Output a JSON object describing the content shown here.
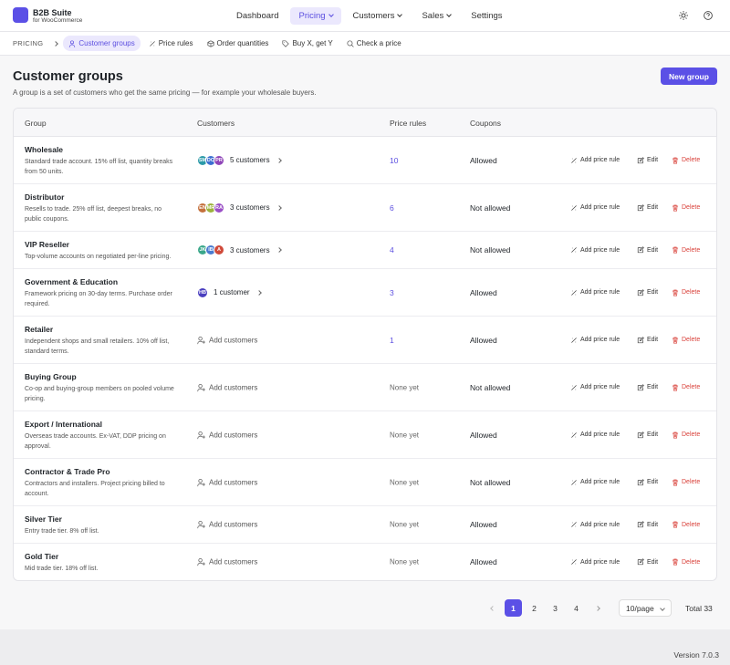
{
  "brand": {
    "title": "B2B Suite",
    "subtitle": "for WooCommerce"
  },
  "nav": [
    "Dashboard",
    "Pricing",
    "Customers",
    "Sales",
    "Settings"
  ],
  "subnav": {
    "label": "PRICING",
    "items": [
      "Customer groups",
      "Price rules",
      "Order quantities",
      "Buy X, get Y",
      "Check a price"
    ]
  },
  "page": {
    "title": "Customer groups",
    "description": "A group is a set of customers who get the same pricing — for example your wholesale buyers.",
    "button": "New group"
  },
  "table": {
    "headers": [
      "Group",
      "Customers",
      "Price rules",
      "Coupons"
    ],
    "actions": [
      "Add price rule",
      "Edit",
      "Delete"
    ],
    "rows": [
      {
        "name": "Wholesale",
        "description": "Standard trade account. 15% off list, quantity breaks from 50 units.",
        "avatars": [
          {
            "initials": "SM",
            "color": "#2b9aa8"
          },
          {
            "initials": "DO",
            "color": "#3c6fd1"
          },
          {
            "initials": "PR",
            "color": "#8f45b8"
          }
        ],
        "customers": "5 customers",
        "price_rules": 10,
        "coupons": "Allowed"
      },
      {
        "name": "Distributor",
        "description": "Resells to trade. 25% off list, deepest breaks, no public coupons.",
        "avatars": [
          {
            "initials": "EN",
            "color": "#c4703c"
          },
          {
            "initials": "MR",
            "color": "#9cb23d"
          },
          {
            "initials": "RA",
            "color": "#9a4fc6"
          }
        ],
        "customers": "3 customers",
        "price_rules": 6,
        "coupons": "Not allowed"
      },
      {
        "name": "VIP Reseller",
        "description": "Top-volume accounts on negotiated per-line pricing.",
        "avatars": [
          {
            "initials": "JK",
            "color": "#3aa78a"
          },
          {
            "initials": "IB",
            "color": "#4a7bd0"
          },
          {
            "initials": "A",
            "color": "#d04a3a"
          }
        ],
        "customers": "3 customers",
        "price_rules": 4,
        "coupons": "Not allowed"
      },
      {
        "name": "Government & Education",
        "description": "Framework pricing on 30-day terms. Purchase order required.",
        "avatars": [
          {
            "initials": "HB",
            "color": "#4a3fbf"
          }
        ],
        "customers": "1 customer",
        "price_rules": 3,
        "coupons": "Allowed"
      },
      {
        "name": "Retailer",
        "description": "Independent shops and small retailers. 10% off list, standard terms.",
        "avatars": [],
        "customers": "Add customers",
        "price_rules": 1,
        "coupons": "Allowed"
      },
      {
        "name": "Buying Group",
        "description": "Co-op and buying-group members on pooled volume pricing.",
        "avatars": [],
        "customers": "Add customers",
        "price_rules": "None yet",
        "coupons": "Not allowed"
      },
      {
        "name": "Export / International",
        "description": "Overseas trade accounts. Ex-VAT, DDP pricing on approval.",
        "avatars": [],
        "customers": "Add customers",
        "price_rules": "None yet",
        "coupons": "Allowed"
      },
      {
        "name": "Contractor & Trade Pro",
        "description": "Contractors and installers. Project pricing billed to account.",
        "avatars": [],
        "customers": "Add customers",
        "price_rules": "None yet",
        "coupons": "Not allowed"
      },
      {
        "name": "Silver Tier",
        "description": "Entry trade tier. 8% off list.",
        "avatars": [],
        "customers": "Add customers",
        "price_rules": "None yet",
        "coupons": "Allowed"
      },
      {
        "name": "Gold Tier",
        "description": "Mid trade tier. 18% off list.",
        "avatars": [],
        "customers": "Add customers",
        "price_rules": "None yet",
        "coupons": "Allowed"
      }
    ]
  },
  "pagination": {
    "pages": [
      "1",
      "2",
      "3",
      "4"
    ],
    "per_page": "10/page",
    "total": "Total 33"
  },
  "footer": {
    "version": "Version 7.0.3"
  }
}
